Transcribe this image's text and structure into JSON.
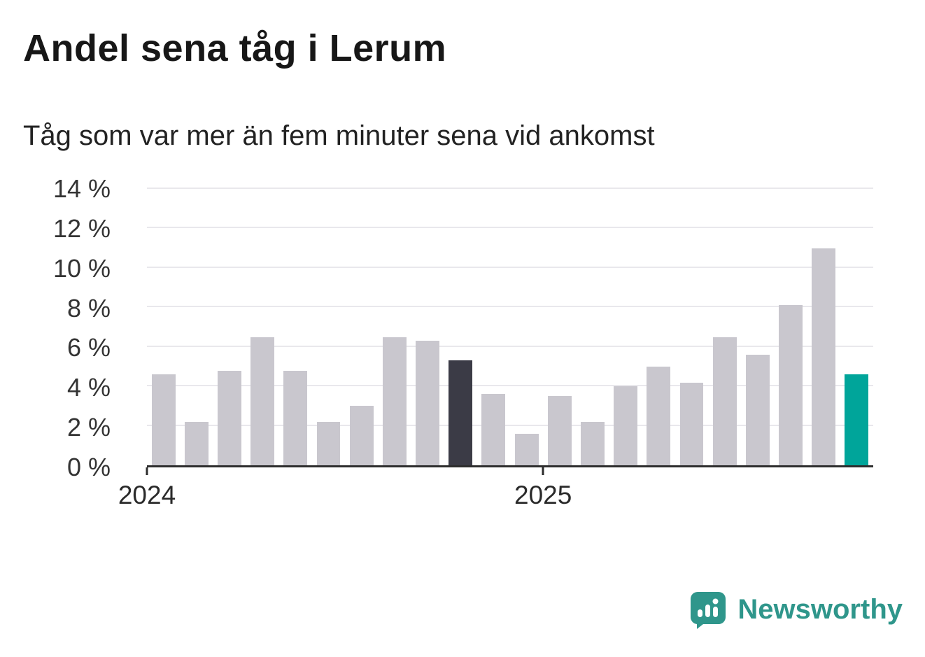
{
  "header": {
    "title": "Andel sena tåg i Lerum",
    "subtitle": "Tåg som var mer än fem minuter sena vid ankomst"
  },
  "chart_data": {
    "type": "bar",
    "title": "Andel sena tåg i Lerum",
    "subtitle": "Tåg som var mer än fem minuter sena vid ankomst",
    "unit": "%",
    "ylim": [
      0,
      14
    ],
    "ytick_step": 2,
    "ytick_labels": [
      "0 %",
      "2 %",
      "4 %",
      "6 %",
      "8 %",
      "10 %",
      "12 %",
      "14 %"
    ],
    "xtick_labels": [
      {
        "label": "2024",
        "index": 0
      },
      {
        "label": "2025",
        "index": 12
      }
    ],
    "values": [
      4.6,
      2.2,
      4.8,
      6.5,
      4.8,
      2.2,
      3.0,
      6.5,
      6.3,
      5.3,
      3.6,
      1.6,
      3.5,
      2.2,
      4.0,
      5.0,
      4.2,
      6.5,
      5.6,
      8.1,
      11.0,
      4.6
    ],
    "highlight_dark_index": 9,
    "highlight_accent_index": 21,
    "bar_colors": {
      "default": "#c9c7ce",
      "highlight_dark": "#3b3b46",
      "highlight_accent": "#00a59a"
    },
    "grid": true,
    "legend": "none"
  },
  "branding": {
    "logo_text": "Newsworthy",
    "logo_color": "#2f968b"
  }
}
